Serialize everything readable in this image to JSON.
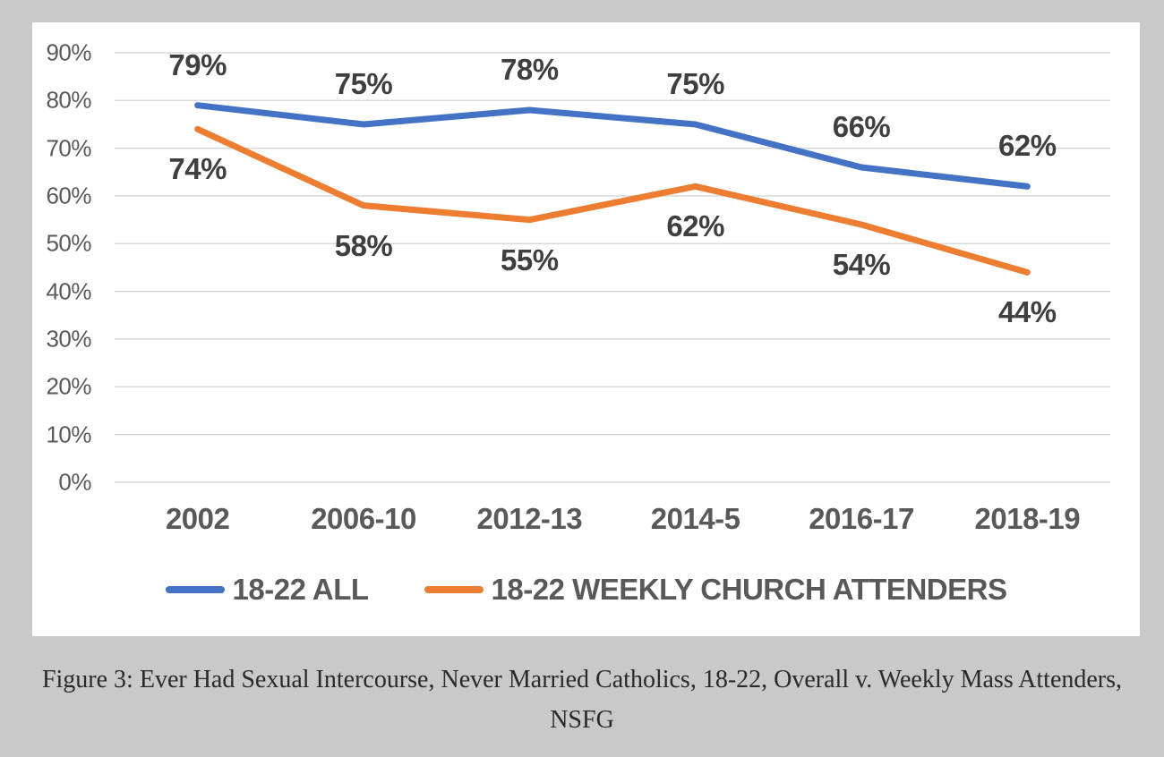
{
  "figure": {
    "caption_line1": "Figure 3: Ever Had Sexual Intercourse, Never Married Catholics, 18-22, Overall v. Weekly Mass Attenders,",
    "caption_line2": "NSFG"
  },
  "chart_data": {
    "type": "line",
    "title": "",
    "categories": [
      "2002",
      "2006-10",
      "2012-13",
      "2014-5",
      "2016-17",
      "2018-19"
    ],
    "series": [
      {
        "name": "18-22 ALL",
        "color": "#4472C4",
        "values": [
          79,
          75,
          78,
          75,
          66,
          62
        ],
        "data_labels": [
          "79%",
          "75%",
          "78%",
          "75%",
          "66%",
          "62%"
        ],
        "label_position": "above"
      },
      {
        "name": "18-22 WEEKLY CHURCH ATTENDERS",
        "color": "#ED7D31",
        "values": [
          74,
          58,
          55,
          62,
          54,
          44
        ],
        "data_labels": [
          "74%",
          "58%",
          "55%",
          "62%",
          "54%",
          "44%"
        ],
        "label_position": "below"
      }
    ],
    "y_axis": {
      "min": 0,
      "max": 90,
      "step": 10,
      "tick_labels": [
        "0%",
        "10%",
        "20%",
        "30%",
        "40%",
        "50%",
        "60%",
        "70%",
        "80%",
        "90%"
      ]
    },
    "grid": true,
    "legend_position": "bottom",
    "data_labels_shown": true,
    "styles": {
      "page_background": "#c9c9c9",
      "panel_background": "#ffffff",
      "gridline_color": "#d8d8d8",
      "axis_text_color": "#595959",
      "data_label_color": "#3f3f3f",
      "caption_color": "#2a2a2a",
      "line_width": 7
    }
  }
}
